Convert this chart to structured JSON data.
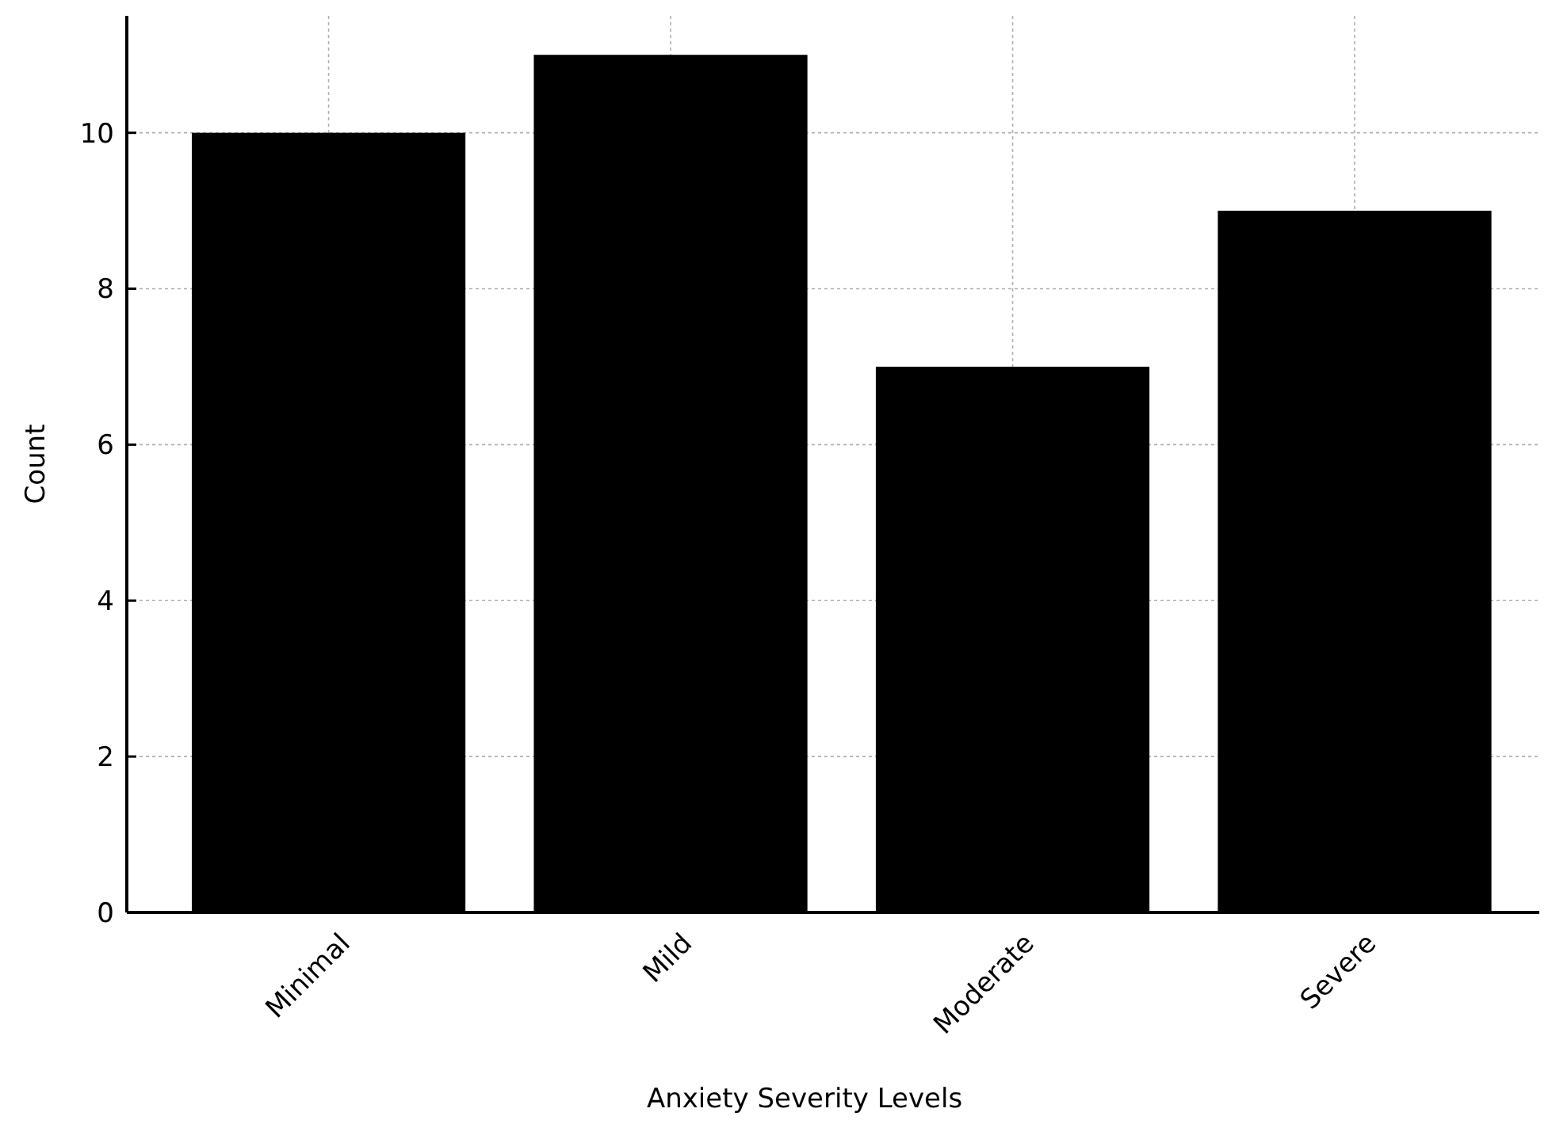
{
  "chart_data": {
    "type": "bar",
    "xlabel": "Anxiety Severity Levels",
    "ylabel": "Count",
    "categories": [
      "Minimal",
      "Mild",
      "Moderate",
      "Severe"
    ],
    "values": [
      10,
      11,
      7,
      9
    ],
    "color": "#000000",
    "ylim": [
      0,
      11.5
    ],
    "yticks": [
      0,
      2,
      4,
      6,
      8,
      10
    ],
    "grid": true
  }
}
